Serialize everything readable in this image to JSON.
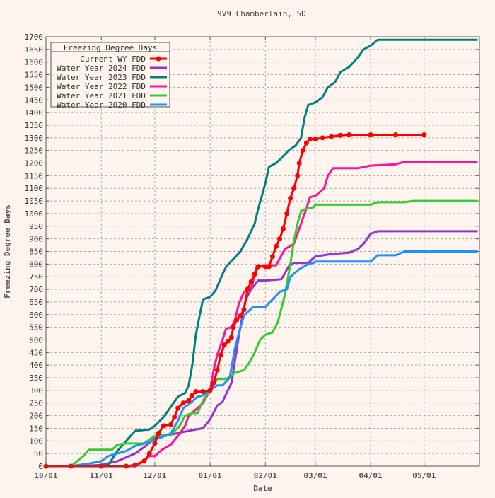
{
  "chart_data": {
    "type": "line",
    "title": "9V9 Chamberlain, SD",
    "xlabel": "Date",
    "ylabel": "Freezing Degree Days",
    "xlim": [
      "10/01",
      "05/31"
    ],
    "ylim": [
      0,
      1700
    ],
    "x_ticks": [
      "10/01",
      "11/01",
      "12/01",
      "01/01",
      "02/01",
      "03/01",
      "04/01",
      "05/01"
    ],
    "y_ticks": [
      0,
      50,
      100,
      150,
      200,
      250,
      300,
      350,
      400,
      450,
      500,
      550,
      600,
      650,
      700,
      750,
      800,
      850,
      900,
      950,
      1000,
      1050,
      1100,
      1150,
      1200,
      1250,
      1300,
      1350,
      1400,
      1450,
      1500,
      1550,
      1600,
      1650,
      1700
    ],
    "grid": true,
    "legend": {
      "title": "Freezing Degree Days",
      "placement": "top-left"
    },
    "series": [
      {
        "name": "Current WY FDD",
        "color": "#ff0000",
        "marker": "diamond",
        "points": [
          [
            "10/01",
            0
          ],
          [
            "10/15",
            0
          ],
          [
            "11/01",
            0
          ],
          [
            "11/15",
            0
          ],
          [
            "11/20",
            5
          ],
          [
            "11/25",
            20
          ],
          [
            "11/28",
            50
          ],
          [
            "12/01",
            90
          ],
          [
            "12/03",
            130
          ],
          [
            "12/06",
            160
          ],
          [
            "12/10",
            165
          ],
          [
            "12/12",
            195
          ],
          [
            "12/14",
            230
          ],
          [
            "12/17",
            250
          ],
          [
            "12/20",
            260
          ],
          [
            "12/22",
            280
          ],
          [
            "12/24",
            295
          ],
          [
            "12/28",
            295
          ],
          [
            "01/01",
            300
          ],
          [
            "01/03",
            330
          ],
          [
            "01/05",
            380
          ],
          [
            "01/07",
            440
          ],
          [
            "01/09",
            480
          ],
          [
            "01/11",
            495
          ],
          [
            "01/13",
            510
          ],
          [
            "01/14",
            550
          ],
          [
            "01/16",
            580
          ],
          [
            "01/18",
            595
          ],
          [
            "01/20",
            620
          ],
          [
            "01/22",
            700
          ],
          [
            "01/24",
            730
          ],
          [
            "01/26",
            760
          ],
          [
            "01/28",
            790
          ],
          [
            "02/01",
            790
          ],
          [
            "02/03",
            790
          ],
          [
            "02/05",
            830
          ],
          [
            "02/07",
            870
          ],
          [
            "02/09",
            900
          ],
          [
            "02/11",
            940
          ],
          [
            "02/13",
            1000
          ],
          [
            "02/15",
            1060
          ],
          [
            "02/17",
            1100
          ],
          [
            "02/19",
            1150
          ],
          [
            "02/20",
            1200
          ],
          [
            "02/22",
            1250
          ],
          [
            "02/24",
            1280
          ],
          [
            "02/26",
            1295
          ],
          [
            "03/01",
            1295
          ],
          [
            "03/05",
            1300
          ],
          [
            "03/10",
            1305
          ],
          [
            "03/15",
            1310
          ],
          [
            "03/20",
            1312
          ],
          [
            "04/01",
            1312
          ],
          [
            "04/15",
            1312
          ],
          [
            "05/01",
            1312
          ]
        ]
      },
      {
        "name": "Water Year 2024 FDD",
        "color": "#9932cc",
        "points": [
          [
            "10/01",
            0
          ],
          [
            "10/20",
            0
          ],
          [
            "11/01",
            5
          ],
          [
            "11/10",
            20
          ],
          [
            "11/20",
            50
          ],
          [
            "11/25",
            75
          ],
          [
            "12/01",
            110
          ],
          [
            "12/10",
            125
          ],
          [
            "12/20",
            140
          ],
          [
            "12/28",
            150
          ],
          [
            "01/01",
            185
          ],
          [
            "01/05",
            240
          ],
          [
            "01/08",
            255
          ],
          [
            "01/11",
            300
          ],
          [
            "01/13",
            330
          ],
          [
            "01/15",
            420
          ],
          [
            "01/17",
            510
          ],
          [
            "01/19",
            590
          ],
          [
            "01/21",
            660
          ],
          [
            "01/24",
            700
          ],
          [
            "01/28",
            735
          ],
          [
            "02/01",
            735
          ],
          [
            "02/10",
            740
          ],
          [
            "02/14",
            790
          ],
          [
            "02/17",
            805
          ],
          [
            "02/25",
            805
          ],
          [
            "03/01",
            830
          ],
          [
            "03/10",
            840
          ],
          [
            "03/20",
            845
          ],
          [
            "03/25",
            860
          ],
          [
            "03/28",
            880
          ],
          [
            "04/01",
            920
          ],
          [
            "04/05",
            930
          ],
          [
            "04/20",
            930
          ],
          [
            "05/15",
            930
          ],
          [
            "05/31",
            930
          ]
        ]
      },
      {
        "name": "Water Year 2023 FDD",
        "color": "#008080",
        "points": [
          [
            "10/01",
            0
          ],
          [
            "10/20",
            0
          ],
          [
            "11/01",
            0
          ],
          [
            "11/05",
            5
          ],
          [
            "11/10",
            60
          ],
          [
            "11/15",
            100
          ],
          [
            "11/20",
            140
          ],
          [
            "11/28",
            145
          ],
          [
            "12/01",
            160
          ],
          [
            "12/06",
            195
          ],
          [
            "12/10",
            235
          ],
          [
            "12/14",
            275
          ],
          [
            "12/18",
            290
          ],
          [
            "12/20",
            320
          ],
          [
            "12/22",
            400
          ],
          [
            "12/24",
            520
          ],
          [
            "12/26",
            590
          ],
          [
            "12/28",
            660
          ],
          [
            "01/01",
            670
          ],
          [
            "01/04",
            695
          ],
          [
            "01/08",
            760
          ],
          [
            "01/10",
            790
          ],
          [
            "01/14",
            820
          ],
          [
            "01/18",
            850
          ],
          [
            "01/22",
            900
          ],
          [
            "01/26",
            960
          ],
          [
            "01/28",
            1020
          ],
          [
            "02/01",
            1120
          ],
          [
            "02/03",
            1185
          ],
          [
            "02/07",
            1200
          ],
          [
            "02/10",
            1220
          ],
          [
            "02/14",
            1250
          ],
          [
            "02/18",
            1270
          ],
          [
            "02/21",
            1300
          ],
          [
            "02/23",
            1380
          ],
          [
            "02/25",
            1430
          ],
          [
            "03/01",
            1440
          ],
          [
            "03/05",
            1460
          ],
          [
            "03/08",
            1500
          ],
          [
            "03/12",
            1520
          ],
          [
            "03/15",
            1560
          ],
          [
            "03/20",
            1580
          ],
          [
            "03/25",
            1620
          ],
          [
            "03/28",
            1650
          ],
          [
            "04/01",
            1665
          ],
          [
            "04/05",
            1688
          ],
          [
            "04/15",
            1688
          ],
          [
            "05/15",
            1688
          ],
          [
            "05/31",
            1688
          ]
        ]
      },
      {
        "name": "Water Year 2022 FDD",
        "color": "#ff1493",
        "points": [
          [
            "10/01",
            0
          ],
          [
            "10/20",
            0
          ],
          [
            "11/01",
            0
          ],
          [
            "11/20",
            0
          ],
          [
            "11/25",
            20
          ],
          [
            "11/28",
            40
          ],
          [
            "12/01",
            40
          ],
          [
            "12/05",
            65
          ],
          [
            "12/10",
            85
          ],
          [
            "12/14",
            120
          ],
          [
            "12/18",
            160
          ],
          [
            "12/20",
            200
          ],
          [
            "12/25",
            230
          ],
          [
            "12/28",
            250
          ],
          [
            "01/01",
            300
          ],
          [
            "01/03",
            380
          ],
          [
            "01/05",
            440
          ],
          [
            "01/08",
            500
          ],
          [
            "01/10",
            545
          ],
          [
            "01/13",
            550
          ],
          [
            "01/15",
            580
          ],
          [
            "01/17",
            640
          ],
          [
            "01/20",
            690
          ],
          [
            "01/24",
            700
          ],
          [
            "01/27",
            790
          ],
          [
            "02/01",
            795
          ],
          [
            "02/07",
            795
          ],
          [
            "02/12",
            860
          ],
          [
            "02/17",
            880
          ],
          [
            "02/20",
            940
          ],
          [
            "02/24",
            1020
          ],
          [
            "02/26",
            1065
          ],
          [
            "03/01",
            1070
          ],
          [
            "03/06",
            1100
          ],
          [
            "03/08",
            1150
          ],
          [
            "03/11",
            1180
          ],
          [
            "03/25",
            1180
          ],
          [
            "04/01",
            1190
          ],
          [
            "04/15",
            1195
          ],
          [
            "04/20",
            1205
          ],
          [
            "05/15",
            1205
          ],
          [
            "05/31",
            1205
          ]
        ]
      },
      {
        "name": "Water Year 2021 FDD",
        "color": "#32cd32",
        "points": [
          [
            "10/01",
            0
          ],
          [
            "10/15",
            0
          ],
          [
            "10/22",
            40
          ],
          [
            "10/25",
            65
          ],
          [
            "11/01",
            65
          ],
          [
            "11/07",
            65
          ],
          [
            "11/10",
            85
          ],
          [
            "11/15",
            90
          ],
          [
            "11/25",
            90
          ],
          [
            "12/01",
            120
          ],
          [
            "12/10",
            125
          ],
          [
            "12/15",
            160
          ],
          [
            "12/18",
            200
          ],
          [
            "12/22",
            210
          ],
          [
            "12/25",
            210
          ],
          [
            "12/28",
            260
          ],
          [
            "01/01",
            300
          ],
          [
            "01/05",
            345
          ],
          [
            "01/10",
            345
          ],
          [
            "01/15",
            370
          ],
          [
            "01/20",
            380
          ],
          [
            "01/23",
            410
          ],
          [
            "01/26",
            450
          ],
          [
            "01/29",
            500
          ],
          [
            "02/01",
            520
          ],
          [
            "02/05",
            530
          ],
          [
            "02/08",
            570
          ],
          [
            "02/12",
            680
          ],
          [
            "02/15",
            800
          ],
          [
            "02/17",
            890
          ],
          [
            "02/19",
            960
          ],
          [
            "02/21",
            1010
          ],
          [
            "02/24",
            1020
          ],
          [
            "02/28",
            1025
          ],
          [
            "03/01",
            1035
          ],
          [
            "03/15",
            1035
          ],
          [
            "04/01",
            1035
          ],
          [
            "04/05",
            1045
          ],
          [
            "04/20",
            1045
          ],
          [
            "04/25",
            1050
          ],
          [
            "05/15",
            1050
          ],
          [
            "05/31",
            1050
          ]
        ]
      },
      {
        "name": "Water Year 2020 FDD",
        "color": "#1e90ff",
        "points": [
          [
            "10/01",
            0
          ],
          [
            "10/15",
            0
          ],
          [
            "10/25",
            10
          ],
          [
            "11/01",
            20
          ],
          [
            "11/05",
            40
          ],
          [
            "11/10",
            50
          ],
          [
            "11/15",
            60
          ],
          [
            "11/20",
            80
          ],
          [
            "11/28",
            95
          ],
          [
            "12/01",
            105
          ],
          [
            "12/05",
            115
          ],
          [
            "12/10",
            130
          ],
          [
            "12/14",
            180
          ],
          [
            "12/17",
            230
          ],
          [
            "12/21",
            250
          ],
          [
            "12/25",
            275
          ],
          [
            "12/28",
            280
          ],
          [
            "01/01",
            300
          ],
          [
            "01/05",
            320
          ],
          [
            "01/08",
            320
          ],
          [
            "01/12",
            350
          ],
          [
            "01/15",
            470
          ],
          [
            "01/18",
            550
          ],
          [
            "01/20",
            595
          ],
          [
            "01/22",
            610
          ],
          [
            "01/25",
            630
          ],
          [
            "02/01",
            630
          ],
          [
            "02/05",
            660
          ],
          [
            "02/09",
            690
          ],
          [
            "02/13",
            700
          ],
          [
            "02/15",
            750
          ],
          [
            "02/20",
            780
          ],
          [
            "02/25",
            800
          ],
          [
            "02/28",
            805
          ],
          [
            "03/01",
            810
          ],
          [
            "03/20",
            810
          ],
          [
            "04/01",
            810
          ],
          [
            "04/05",
            835
          ],
          [
            "04/15",
            835
          ],
          [
            "04/20",
            850
          ],
          [
            "05/15",
            850
          ],
          [
            "05/31",
            850
          ]
        ]
      }
    ]
  }
}
